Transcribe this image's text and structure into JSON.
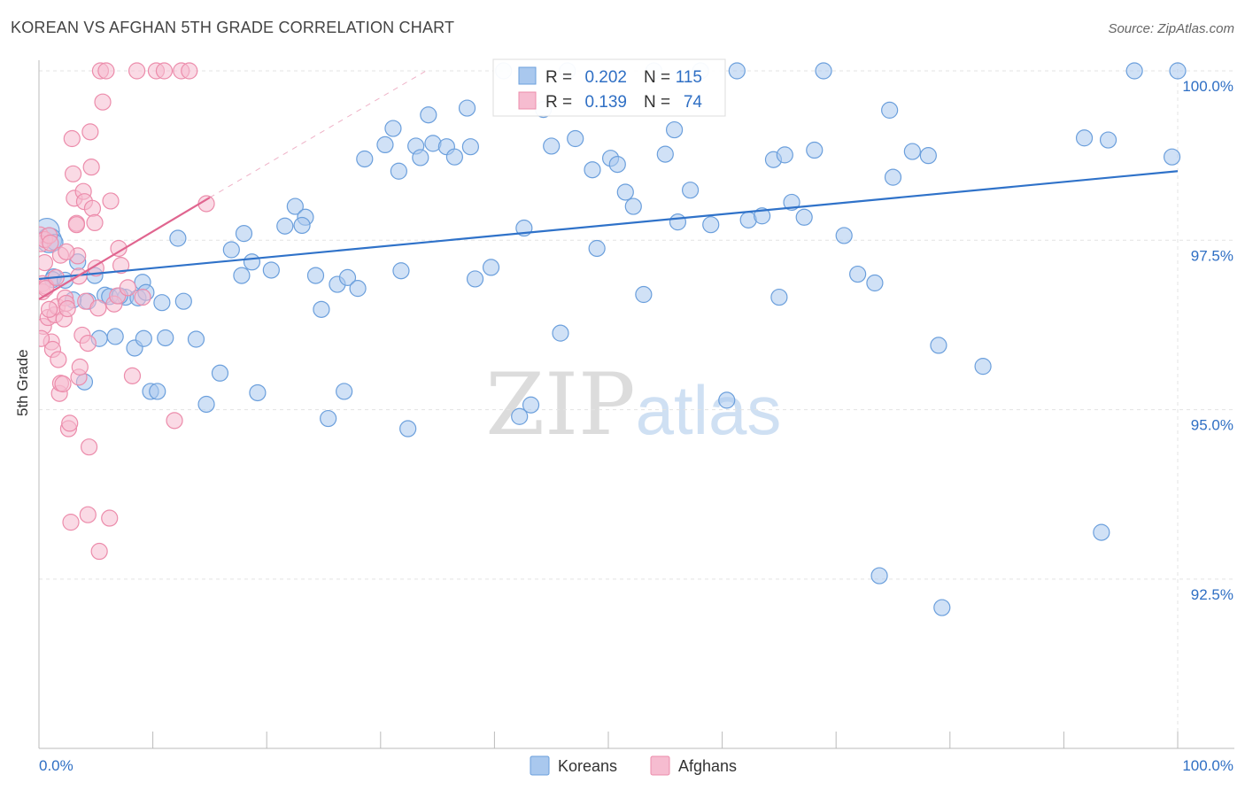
{
  "header": {
    "title": "KOREAN VS AFGHAN 5TH GRADE CORRELATION CHART",
    "source": "Source: ZipAtlas.com"
  },
  "watermark": {
    "zip": "ZIP",
    "atlas": "atlas"
  },
  "chart_data": {
    "type": "scatter",
    "title": "KOREAN VS AFGHAN 5TH GRADE CORRELATION CHART",
    "xlabel": "",
    "ylabel": "5th Grade",
    "xlim": [
      0,
      100
    ],
    "ylim": [
      90.0,
      100.35
    ],
    "x_tick_labels": [
      "0.0%",
      "100.0%"
    ],
    "y_ticks": [
      {
        "value": 100.0,
        "label": "100.0%"
      },
      {
        "value": 97.5,
        "label": "97.5%"
      },
      {
        "value": 95.0,
        "label": "95.0%"
      },
      {
        "value": 92.5,
        "label": "92.5%"
      }
    ],
    "grid": true,
    "legend_position": "bottom-center",
    "stats_box": [
      {
        "series": "Koreans",
        "r_label": "R =",
        "r": "0.202",
        "n_label": "N =",
        "n": "115"
      },
      {
        "series": "Afghans",
        "r_label": "R =",
        "r": "0.139",
        "n_label": "N =",
        "n": "74"
      }
    ],
    "colors": {
      "Koreans": {
        "fill": "#a9c8ee",
        "stroke": "#6b9fdc",
        "line": "#2f72c9"
      },
      "Afghans": {
        "fill": "#f6bcd0",
        "stroke": "#ec8cab",
        "line": "#e0658f"
      },
      "accent_text": "#2f6fc4",
      "grid": "#e3e3e3"
    },
    "series": [
      {
        "name": "Koreans",
        "trend": {
          "x0": 0,
          "y0": 96.93,
          "x1": 100,
          "y1": 98.52
        },
        "points": [
          [
            0.7,
            97.64
          ],
          [
            0.9,
            97.5
          ],
          [
            1.3,
            96.96
          ],
          [
            1.2,
            96.92
          ],
          [
            3.4,
            97.18
          ],
          [
            4.9,
            96.98
          ],
          [
            4.3,
            96.6
          ],
          [
            5.8,
            96.69
          ],
          [
            6.7,
            96.08
          ],
          [
            7.6,
            96.66
          ],
          [
            8.7,
            96.65
          ],
          [
            8.4,
            95.91
          ],
          [
            6.2,
            96.67
          ],
          [
            7.1,
            96.68
          ],
          [
            9.1,
            96.88
          ],
          [
            9.4,
            96.73
          ],
          [
            9.2,
            96.05
          ],
          [
            9.8,
            95.27
          ],
          [
            10.4,
            95.27
          ],
          [
            10.8,
            96.58
          ],
          [
            11.1,
            96.06
          ],
          [
            12.2,
            97.53
          ],
          [
            12.7,
            96.6
          ],
          [
            13.8,
            96.04
          ],
          [
            14.7,
            95.08
          ],
          [
            15.9,
            95.54
          ],
          [
            16.9,
            97.36
          ],
          [
            18.0,
            97.6
          ],
          [
            18.7,
            97.18
          ],
          [
            17.8,
            96.98
          ],
          [
            19.2,
            95.25
          ],
          [
            20.4,
            97.06
          ],
          [
            21.6,
            97.71
          ],
          [
            22.5,
            98.0
          ],
          [
            23.4,
            97.84
          ],
          [
            23.1,
            97.72
          ],
          [
            24.3,
            96.98
          ],
          [
            24.8,
            96.48
          ],
          [
            25.4,
            94.87
          ],
          [
            26.2,
            96.85
          ],
          [
            26.8,
            95.27
          ],
          [
            27.1,
            96.95
          ],
          [
            28.0,
            96.79
          ],
          [
            28.6,
            98.7
          ],
          [
            30.4,
            98.91
          ],
          [
            31.1,
            99.15
          ],
          [
            31.6,
            98.52
          ],
          [
            31.8,
            97.05
          ],
          [
            32.4,
            94.72
          ],
          [
            33.1,
            98.89
          ],
          [
            33.5,
            98.72
          ],
          [
            34.2,
            99.35
          ],
          [
            34.6,
            98.93
          ],
          [
            35.8,
            98.88
          ],
          [
            36.5,
            98.73
          ],
          [
            37.6,
            99.45
          ],
          [
            37.9,
            98.88
          ],
          [
            38.3,
            96.93
          ],
          [
            39.7,
            97.1
          ],
          [
            40.8,
            100.0
          ],
          [
            42.2,
            94.9
          ],
          [
            42.6,
            97.68
          ],
          [
            43.2,
            95.07
          ],
          [
            44.3,
            99.43
          ],
          [
            45.0,
            98.89
          ],
          [
            45.8,
            96.13
          ],
          [
            46.4,
            100.0
          ],
          [
            47.1,
            99.0
          ],
          [
            48.6,
            98.54
          ],
          [
            49.0,
            97.38
          ],
          [
            50.2,
            98.71
          ],
          [
            50.8,
            98.62
          ],
          [
            51.5,
            98.21
          ],
          [
            52.2,
            98.0
          ],
          [
            53.1,
            96.7
          ],
          [
            54.0,
            100.0
          ],
          [
            55.0,
            98.77
          ],
          [
            55.8,
            99.13
          ],
          [
            56.1,
            97.77
          ],
          [
            57.2,
            98.24
          ],
          [
            58.1,
            100.0
          ],
          [
            59.0,
            97.73
          ],
          [
            60.4,
            95.14
          ],
          [
            61.3,
            100.0
          ],
          [
            62.3,
            97.8
          ],
          [
            63.5,
            97.86
          ],
          [
            64.5,
            98.69
          ],
          [
            65.0,
            96.66
          ],
          [
            65.5,
            98.76
          ],
          [
            66.1,
            98.06
          ],
          [
            67.2,
            97.84
          ],
          [
            68.1,
            98.83
          ],
          [
            68.9,
            100.0
          ],
          [
            70.7,
            97.57
          ],
          [
            71.9,
            97.0
          ],
          [
            73.4,
            96.87
          ],
          [
            73.8,
            92.55
          ],
          [
            74.7,
            99.42
          ],
          [
            75.0,
            98.43
          ],
          [
            76.7,
            98.81
          ],
          [
            78.1,
            98.75
          ],
          [
            79.0,
            95.95
          ],
          [
            79.3,
            92.08
          ],
          [
            82.9,
            95.64
          ],
          [
            91.8,
            99.01
          ],
          [
            93.3,
            93.19
          ],
          [
            93.9,
            98.98
          ],
          [
            96.2,
            100.0
          ],
          [
            99.5,
            98.73
          ],
          [
            100.0,
            100.0
          ],
          [
            1.4,
            97.47
          ],
          [
            2.3,
            96.91
          ],
          [
            3.0,
            96.62
          ],
          [
            4.0,
            95.41
          ],
          [
            5.3,
            96.05
          ]
        ]
      },
      {
        "name": "Afghans",
        "trend": {
          "x0": 0,
          "y0": 96.63,
          "x1": 15,
          "y1": 98.13
        },
        "trend_dashed": {
          "x0": 15,
          "y0": 98.13,
          "x1": 34,
          "y1": 100.0
        },
        "points": [
          [
            0.1,
            97.58
          ],
          [
            0.2,
            97.45
          ],
          [
            0.3,
            96.86
          ],
          [
            0.3,
            96.74
          ],
          [
            0.4,
            96.23
          ],
          [
            0.5,
            97.51
          ],
          [
            0.5,
            97.17
          ],
          [
            0.6,
            96.82
          ],
          [
            0.6,
            96.79
          ],
          [
            0.8,
            96.36
          ],
          [
            0.9,
            97.57
          ],
          [
            1.0,
            97.46
          ],
          [
            1.1,
            96.0
          ],
          [
            1.2,
            95.89
          ],
          [
            1.4,
            96.4
          ],
          [
            1.5,
            96.95
          ],
          [
            1.6,
            96.52
          ],
          [
            1.7,
            95.74
          ],
          [
            1.8,
            95.24
          ],
          [
            1.9,
            95.39
          ],
          [
            2.1,
            95.38
          ],
          [
            2.2,
            96.34
          ],
          [
            2.3,
            96.65
          ],
          [
            2.4,
            96.57
          ],
          [
            2.5,
            96.49
          ],
          [
            2.6,
            94.72
          ],
          [
            2.7,
            94.8
          ],
          [
            2.8,
            93.34
          ],
          [
            2.9,
            99.0
          ],
          [
            3.0,
            98.48
          ],
          [
            3.1,
            98.12
          ],
          [
            3.3,
            97.75
          ],
          [
            3.3,
            97.73
          ],
          [
            3.4,
            97.27
          ],
          [
            3.5,
            96.97
          ],
          [
            3.5,
            95.48
          ],
          [
            3.6,
            95.63
          ],
          [
            3.8,
            96.1
          ],
          [
            3.9,
            98.22
          ],
          [
            4.0,
            98.07
          ],
          [
            4.1,
            96.6
          ],
          [
            4.3,
            93.45
          ],
          [
            4.4,
            94.45
          ],
          [
            4.5,
            99.1
          ],
          [
            4.6,
            98.58
          ],
          [
            4.7,
            97.97
          ],
          [
            4.9,
            97.76
          ],
          [
            5.0,
            97.09
          ],
          [
            5.2,
            96.5
          ],
          [
            5.3,
            92.91
          ],
          [
            5.4,
            100.0
          ],
          [
            5.6,
            99.54
          ],
          [
            5.9,
            100.0
          ],
          [
            6.3,
            98.08
          ],
          [
            6.6,
            96.56
          ],
          [
            6.9,
            96.68
          ],
          [
            7.2,
            97.13
          ],
          [
            7.8,
            96.8
          ],
          [
            8.2,
            95.5
          ],
          [
            8.6,
            100.0
          ],
          [
            9.1,
            96.66
          ],
          [
            10.3,
            100.0
          ],
          [
            11.0,
            100.0
          ],
          [
            11.9,
            94.84
          ],
          [
            12.5,
            100.0
          ],
          [
            13.2,
            100.0
          ],
          [
            14.7,
            98.04
          ],
          [
            0.2,
            96.05
          ],
          [
            0.9,
            96.48
          ],
          [
            1.9,
            97.28
          ],
          [
            2.4,
            97.33
          ],
          [
            4.3,
            95.98
          ],
          [
            6.2,
            93.4
          ],
          [
            7.0,
            97.38
          ]
        ]
      }
    ]
  }
}
